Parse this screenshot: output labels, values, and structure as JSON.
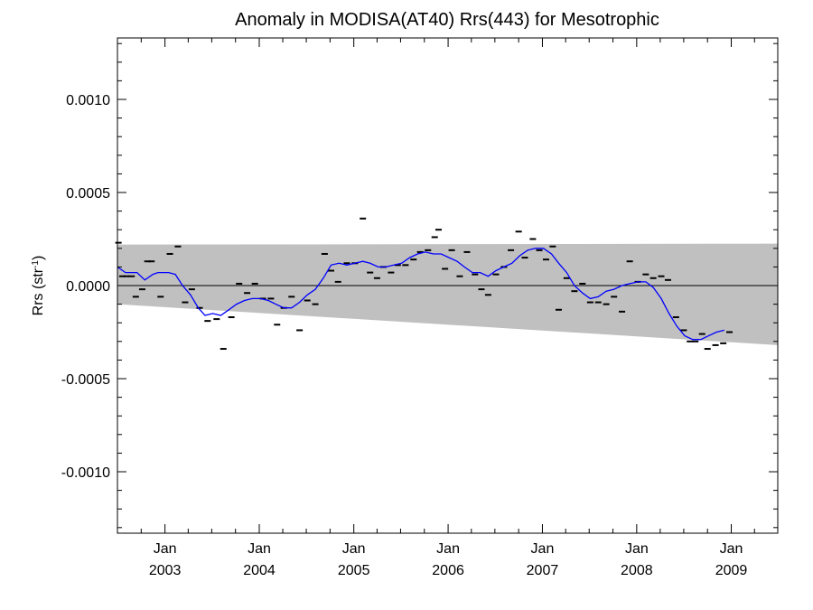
{
  "chart_data": {
    "type": "line",
    "title": "Anomaly in MODISA(AT40) Rrs(443) for Mesotrophic",
    "ylabel_main": "Rrs (str",
    "ylabel_sup": "-1",
    "ylabel_close": ")",
    "xlabel": "",
    "xlim": [
      "2002-07-01",
      "2009-06-30"
    ],
    "ylim": [
      -0.00133,
      0.00133
    ],
    "yticks": [
      {
        "value": 0.001,
        "label": "0.0010"
      },
      {
        "value": 0.0005,
        "label": "0.0005"
      },
      {
        "value": 0.0,
        "label": "0.0000"
      },
      {
        "value": -0.0005,
        "label": "-0.0005"
      },
      {
        "value": -0.001,
        "label": "-0.0010"
      }
    ],
    "xticks": [
      {
        "date": "2003-01-01",
        "line1": "Jan",
        "line2": "2003"
      },
      {
        "date": "2004-01-01",
        "line1": "Jan",
        "line2": "2004"
      },
      {
        "date": "2005-01-01",
        "line1": "Jan",
        "line2": "2005"
      },
      {
        "date": "2006-01-01",
        "line1": "Jan",
        "line2": "2006"
      },
      {
        "date": "2007-01-01",
        "line1": "Jan",
        "line2": "2007"
      },
      {
        "date": "2008-01-01",
        "line1": "Jan",
        "line2": "2008"
      },
      {
        "date": "2009-01-01",
        "line1": "Jan",
        "line2": "2009"
      }
    ],
    "grid": false,
    "zero_line": true,
    "band": {
      "color": "#c0c0c0",
      "upper": [
        [
          "2002-07-01",
          0.00022
        ],
        [
          "2009-06-30",
          0.000225
        ]
      ],
      "lower": [
        [
          "2002-07-01",
          -0.0001
        ],
        [
          "2009-06-30",
          -0.00032
        ]
      ]
    },
    "series": [
      {
        "kind": "points",
        "color": "#000000",
        "points": [
          [
            "2002-07-05",
            0.00023
          ],
          [
            "2002-07-20",
            5e-05
          ],
          [
            "2002-08-05",
            5e-05
          ],
          [
            "2002-08-25",
            5e-05
          ],
          [
            "2002-09-10",
            -6e-05
          ],
          [
            "2002-10-05",
            -2e-05
          ],
          [
            "2002-10-25",
            0.00013
          ],
          [
            "2002-11-10",
            0.00013
          ],
          [
            "2002-12-15",
            -6e-05
          ],
          [
            "2003-01-20",
            0.00017
          ],
          [
            "2003-02-20",
            0.00021
          ],
          [
            "2003-03-20",
            -9e-05
          ],
          [
            "2003-04-15",
            -2e-05
          ],
          [
            "2003-05-15",
            -0.00012
          ],
          [
            "2003-06-15",
            -0.00019
          ],
          [
            "2003-07-20",
            -0.00018
          ],
          [
            "2003-08-15",
            -0.00034
          ],
          [
            "2003-09-15",
            -0.00017
          ],
          [
            "2003-10-15",
            1e-05
          ],
          [
            "2003-11-15",
            -4e-05
          ],
          [
            "2003-12-15",
            1e-05
          ],
          [
            "2004-01-15",
            -7e-05
          ],
          [
            "2004-02-15",
            -7e-05
          ],
          [
            "2004-03-10",
            -0.00021
          ],
          [
            "2004-04-05",
            -0.00012
          ],
          [
            "2004-05-05",
            -6e-05
          ],
          [
            "2004-06-05",
            -0.00024
          ],
          [
            "2004-07-05",
            -8e-05
          ],
          [
            "2004-08-05",
            -0.0001
          ],
          [
            "2004-09-10",
            0.00017
          ],
          [
            "2004-10-05",
            8e-05
          ],
          [
            "2004-11-01",
            2e-05
          ],
          [
            "2004-12-05",
            0.00012
          ],
          [
            "2005-01-05",
            0.00012
          ],
          [
            "2005-02-05",
            0.00036
          ],
          [
            "2005-03-05",
            7e-05
          ],
          [
            "2005-04-01",
            4e-05
          ],
          [
            "2005-04-25",
            0.0001
          ],
          [
            "2005-05-25",
            7e-05
          ],
          [
            "2005-06-20",
            0.00011
          ],
          [
            "2005-07-20",
            0.00011
          ],
          [
            "2005-08-20",
            0.00014
          ],
          [
            "2005-09-15",
            0.00018
          ],
          [
            "2005-10-15",
            0.00019
          ],
          [
            "2005-11-10",
            0.00026
          ],
          [
            "2005-11-25",
            0.0003
          ],
          [
            "2005-12-20",
            9e-05
          ],
          [
            "2006-01-15",
            0.00019
          ],
          [
            "2006-02-15",
            5e-05
          ],
          [
            "2006-03-15",
            0.00018
          ],
          [
            "2006-04-15",
            6e-05
          ],
          [
            "2006-05-10",
            -2e-05
          ],
          [
            "2006-06-05",
            -5e-05
          ],
          [
            "2006-07-05",
            6e-05
          ],
          [
            "2006-08-05",
            0.0001
          ],
          [
            "2006-09-01",
            0.00019
          ],
          [
            "2006-10-01",
            0.00029
          ],
          [
            "2006-10-25",
            0.00015
          ],
          [
            "2006-11-25",
            0.00025
          ],
          [
            "2006-12-20",
            0.00019
          ],
          [
            "2007-01-15",
            0.00014
          ],
          [
            "2007-02-10",
            0.00021
          ],
          [
            "2007-03-05",
            -0.00013
          ],
          [
            "2007-04-05",
            4e-05
          ],
          [
            "2007-05-05",
            -3e-05
          ],
          [
            "2007-06-05",
            1e-05
          ],
          [
            "2007-07-05",
            -9e-05
          ],
          [
            "2007-08-05",
            -9e-05
          ],
          [
            "2007-09-05",
            -0.0001
          ],
          [
            "2007-10-05",
            -6e-05
          ],
          [
            "2007-11-05",
            -0.00014
          ],
          [
            "2007-12-05",
            0.00013
          ],
          [
            "2008-01-05",
            2e-05
          ],
          [
            "2008-02-05",
            6e-05
          ],
          [
            "2008-03-05",
            4e-05
          ],
          [
            "2008-04-05",
            5e-05
          ],
          [
            "2008-05-01",
            3e-05
          ],
          [
            "2008-06-01",
            -0.00017
          ],
          [
            "2008-07-01",
            -0.00024
          ],
          [
            "2008-07-25",
            -0.0003
          ],
          [
            "2008-08-15",
            -0.0003
          ],
          [
            "2008-09-10",
            -0.00026
          ],
          [
            "2008-10-01",
            -0.00034
          ],
          [
            "2008-11-01",
            -0.00032
          ],
          [
            "2008-12-01",
            -0.00031
          ],
          [
            "2008-12-25",
            -0.00025
          ]
        ]
      },
      {
        "kind": "line",
        "color": "#0000ff",
        "points": [
          [
            "2002-07-01",
            0.0001
          ],
          [
            "2002-08-01",
            7e-05
          ],
          [
            "2002-09-15",
            7e-05
          ],
          [
            "2002-10-15",
            3e-05
          ],
          [
            "2002-11-15",
            6e-05
          ],
          [
            "2002-12-05",
            7e-05
          ],
          [
            "2003-01-15",
            7e-05
          ],
          [
            "2003-02-10",
            6e-05
          ],
          [
            "2003-03-10",
            0.0
          ],
          [
            "2003-04-10",
            -5e-05
          ],
          [
            "2003-05-10",
            -0.00012
          ],
          [
            "2003-06-05",
            -0.00016
          ],
          [
            "2003-07-05",
            -0.00015
          ],
          [
            "2003-08-05",
            -0.00016
          ],
          [
            "2003-09-05",
            -0.00013
          ],
          [
            "2003-10-05",
            -0.0001
          ],
          [
            "2003-11-05",
            -8e-05
          ],
          [
            "2003-12-05",
            -7e-05
          ],
          [
            "2004-01-05",
            -7e-05
          ],
          [
            "2004-02-05",
            -8e-05
          ],
          [
            "2004-03-05",
            -0.0001
          ],
          [
            "2004-04-05",
            -0.00012
          ],
          [
            "2004-05-05",
            -0.00012
          ],
          [
            "2004-06-05",
            -9e-05
          ],
          [
            "2004-07-05",
            -5e-05
          ],
          [
            "2004-08-05",
            -2e-05
          ],
          [
            "2004-09-05",
            4e-05
          ],
          [
            "2004-10-05",
            0.00011
          ],
          [
            "2004-11-05",
            0.00012
          ],
          [
            "2004-12-05",
            0.00011
          ],
          [
            "2005-01-05",
            0.00012
          ],
          [
            "2005-02-05",
            0.00013
          ],
          [
            "2005-03-05",
            0.00012
          ],
          [
            "2005-04-05",
            0.0001
          ],
          [
            "2005-05-05",
            0.0001
          ],
          [
            "2005-06-05",
            0.00011
          ],
          [
            "2005-07-05",
            0.00012
          ],
          [
            "2005-08-05",
            0.00015
          ],
          [
            "2005-09-05",
            0.00017
          ],
          [
            "2005-10-05",
            0.00018
          ],
          [
            "2005-11-05",
            0.00017
          ],
          [
            "2005-12-05",
            0.00017
          ],
          [
            "2006-01-05",
            0.00015
          ],
          [
            "2006-02-05",
            0.00013
          ],
          [
            "2006-03-05",
            0.0001
          ],
          [
            "2006-04-05",
            7e-05
          ],
          [
            "2006-05-05",
            7e-05
          ],
          [
            "2006-06-05",
            5e-05
          ],
          [
            "2006-07-05",
            8e-05
          ],
          [
            "2006-08-05",
            0.0001
          ],
          [
            "2006-09-05",
            0.00012
          ],
          [
            "2006-10-05",
            0.00016
          ],
          [
            "2006-11-05",
            0.00019
          ],
          [
            "2006-12-05",
            0.0002
          ],
          [
            "2007-01-05",
            0.0002
          ],
          [
            "2007-02-05",
            0.00017
          ],
          [
            "2007-03-05",
            0.00012
          ],
          [
            "2007-04-05",
            7e-05
          ],
          [
            "2007-05-05",
            0.0
          ],
          [
            "2007-06-05",
            -4e-05
          ],
          [
            "2007-07-05",
            -7e-05
          ],
          [
            "2007-08-05",
            -6e-05
          ],
          [
            "2007-09-05",
            -3e-05
          ],
          [
            "2007-10-05",
            -2e-05
          ],
          [
            "2007-11-05",
            0.0
          ],
          [
            "2007-12-05",
            1e-05
          ],
          [
            "2008-01-05",
            2e-05
          ],
          [
            "2008-02-05",
            2e-05
          ],
          [
            "2008-03-05",
            -1e-05
          ],
          [
            "2008-04-05",
            -7e-05
          ],
          [
            "2008-05-05",
            -0.00015
          ],
          [
            "2008-06-05",
            -0.00022
          ],
          [
            "2008-07-05",
            -0.00027
          ],
          [
            "2008-08-05",
            -0.00029
          ],
          [
            "2008-09-05",
            -0.00029
          ],
          [
            "2008-10-05",
            -0.00027
          ],
          [
            "2008-11-05",
            -0.00025
          ],
          [
            "2008-12-05",
            -0.00024
          ]
        ]
      }
    ]
  }
}
